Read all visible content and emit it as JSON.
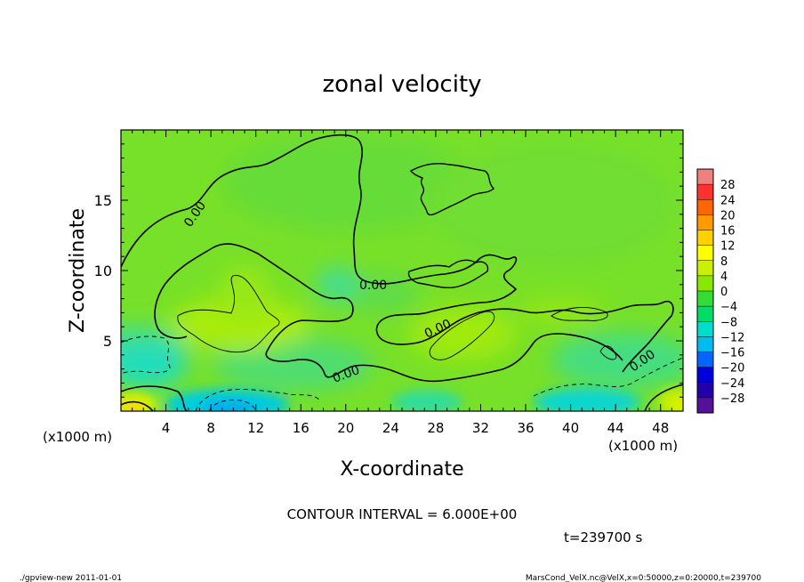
{
  "chart_data": {
    "type": "heatmap",
    "title": "zonal velocity",
    "xlabel": "X-coordinate",
    "ylabel": "Z-coordinate",
    "x_unit": "(x1000 m)",
    "xlim": [
      0,
      50
    ],
    "ylim": [
      0,
      20
    ],
    "xticks": [
      "4",
      "8",
      "12",
      "16",
      "20",
      "24",
      "28",
      "32",
      "36",
      "40",
      "44",
      "48"
    ],
    "yticks": [
      "5",
      "10",
      "15"
    ],
    "colorbar": {
      "ticks": [
        "28",
        "24",
        "20",
        "16",
        "12",
        "8",
        "4",
        "0",
        "−4",
        "−8",
        "−12",
        "−16",
        "−20",
        "−24",
        "−28"
      ],
      "colors": [
        "#f07f7f",
        "#ff3030",
        "#ff6600",
        "#ff9a00",
        "#ffd000",
        "#ffff00",
        "#c8f000",
        "#88e800",
        "#33dd33",
        "#00dd66",
        "#00ddcc",
        "#00bbee",
        "#0066ff",
        "#0000dd",
        "#2200aa",
        "#551199"
      ]
    },
    "contour_labels": [
      "0.00",
      "0.00",
      "0.00",
      "0.00",
      "0.00"
    ],
    "contour_interval": "CONTOUR INTERVAL = 6.000E+00",
    "time_label": "t=239700 s",
    "grid": false
  },
  "footer": {
    "left": "./gpview-new  2011-01-01",
    "right": "MarsCond_VelX.nc@VelX,x=0:50000,z=0:20000,t=239700"
  }
}
